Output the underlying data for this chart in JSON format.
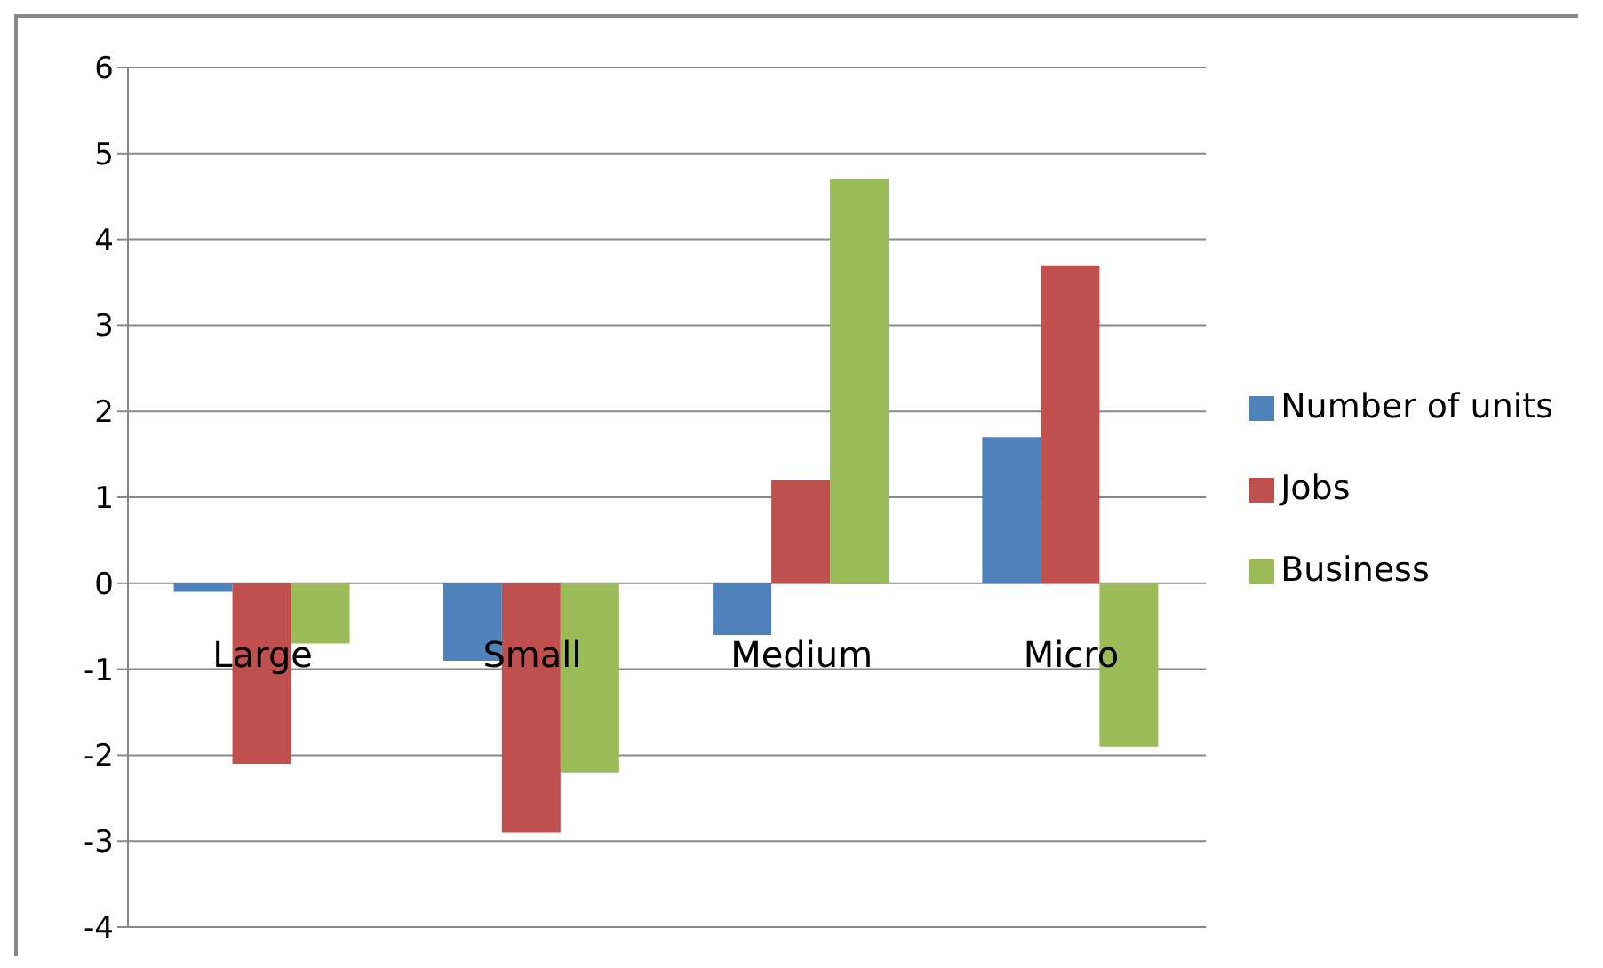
{
  "chart_data": {
    "type": "bar",
    "categories": [
      "Large",
      "Small",
      "Medium",
      "Micro"
    ],
    "series": [
      {
        "name": "Number of units",
        "color": "#4f81bd",
        "values": [
          -0.1,
          -0.9,
          -0.6,
          1.7
        ]
      },
      {
        "name": "Jobs",
        "color": "#c0504d",
        "values": [
          -2.1,
          -2.9,
          1.2,
          3.7
        ]
      },
      {
        "name": "Business",
        "color": "#9bbb59",
        "values": [
          -0.7,
          -2.2,
          4.7,
          -1.9
        ]
      }
    ],
    "ylim": [
      -4,
      6
    ],
    "yticks": [
      -4,
      -3,
      -2,
      -1,
      0,
      1,
      2,
      3,
      4,
      5,
      6
    ],
    "grid": "y",
    "legend": "right"
  }
}
